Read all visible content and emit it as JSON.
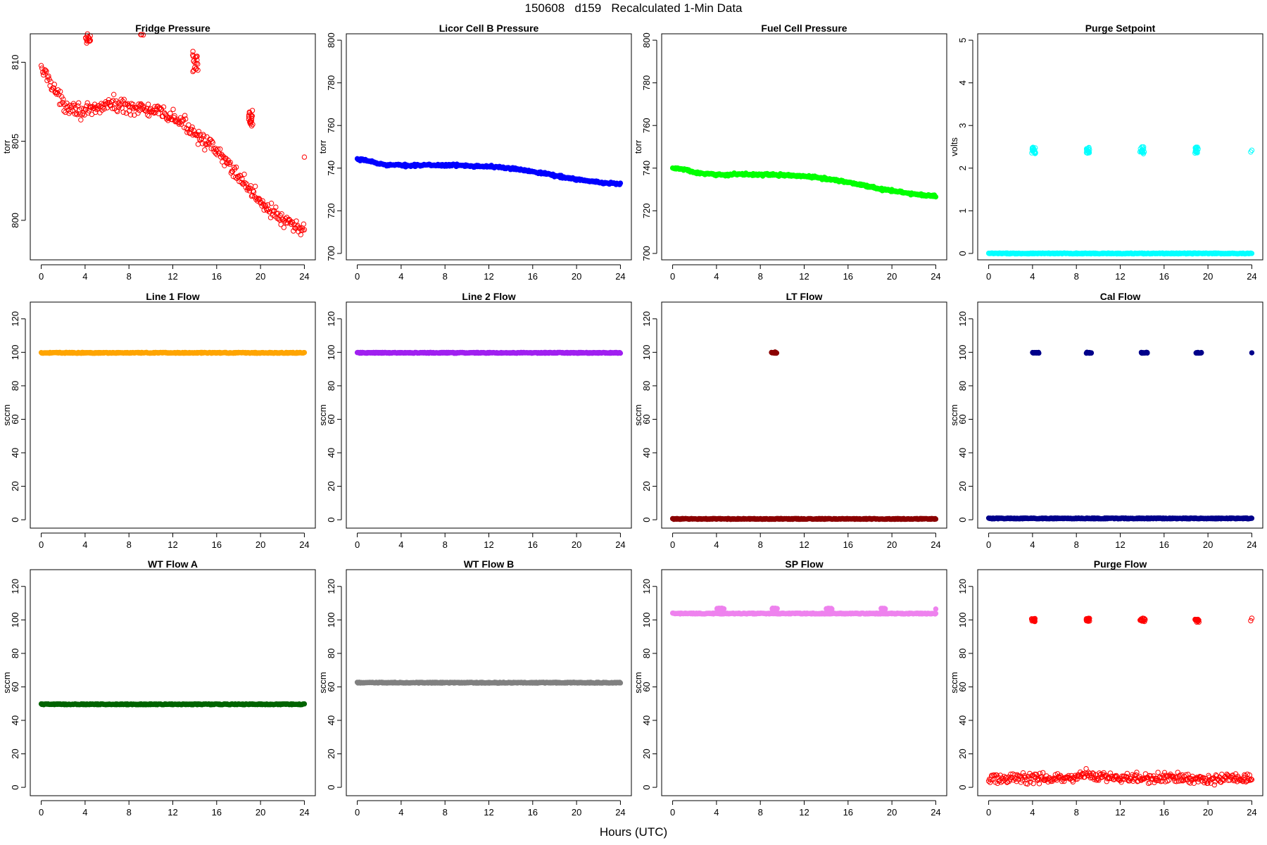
{
  "figure": {
    "title": "150608   d159   Recalculated 1-Min Data",
    "xlabel": "Hours (UTC)"
  },
  "chart_data": [
    {
      "type": "scatter",
      "title": "Fridge Pressure",
      "ylabel": "torr",
      "color": "#ff0000",
      "marker": "open",
      "xlim": [
        -1,
        25
      ],
      "ylim": [
        797.5,
        811.8
      ],
      "xticks": [
        0,
        4,
        8,
        12,
        16,
        20,
        24
      ],
      "yticks": [
        800,
        805,
        810
      ],
      "series": [
        {
          "kind": "trend",
          "x": [
            0,
            0.5,
            1,
            1.5,
            2,
            3,
            4,
            5,
            6,
            7,
            8,
            9,
            10,
            11,
            12,
            13,
            14,
            15,
            16,
            17,
            18,
            19,
            20,
            21,
            22,
            23,
            24
          ],
          "y": [
            809.5,
            809.2,
            808.6,
            807.9,
            807.3,
            807.2,
            806.8,
            807.0,
            807.4,
            807.3,
            807.2,
            807.1,
            806.9,
            806.8,
            806.5,
            806.1,
            805.6,
            805.0,
            804.3,
            803.6,
            802.8,
            802.0,
            801.2,
            800.6,
            800.0,
            799.6,
            799.4
          ],
          "spread": 0.45
        },
        {
          "kind": "cluster",
          "x": [
            4.0,
            4.5
          ],
          "y": [
            811.2,
            812.0
          ]
        },
        {
          "kind": "cluster",
          "x": [
            9.0,
            9.4
          ],
          "y": [
            811.7,
            812.6
          ]
        },
        {
          "kind": "cluster",
          "x": [
            13.8,
            14.3
          ],
          "y": [
            809.4,
            810.8
          ]
        },
        {
          "kind": "cluster",
          "x": [
            18.9,
            19.3
          ],
          "y": [
            805.8,
            807.0
          ]
        },
        {
          "kind": "point",
          "x": [
            24
          ],
          "y": [
            804.0
          ]
        }
      ]
    },
    {
      "type": "scatter",
      "title": "Licor Cell B Pressure",
      "ylabel": "torr",
      "color": "#0000ff",
      "marker": "filled",
      "xlim": [
        -1,
        25
      ],
      "ylim": [
        697,
        803
      ],
      "xticks": [
        0,
        4,
        8,
        12,
        16,
        20,
        24
      ],
      "yticks": [
        700,
        720,
        740,
        760,
        780,
        800
      ],
      "series": [
        {
          "kind": "trend",
          "x": [
            0,
            1,
            2,
            3,
            4,
            5,
            6,
            7,
            8,
            9,
            10,
            11,
            12,
            13,
            14,
            15,
            16,
            17,
            18,
            19,
            20,
            21,
            22,
            23,
            24
          ],
          "y": [
            744,
            743.5,
            742,
            741.5,
            741.3,
            741.3,
            741.4,
            741.4,
            741.4,
            741.3,
            741.2,
            741.0,
            740.8,
            740.4,
            739.8,
            739.2,
            738.5,
            737.6,
            736.6,
            735.6,
            734.8,
            734.0,
            733.3,
            732.9,
            732.7
          ],
          "spread": 0.5
        }
      ]
    },
    {
      "type": "scatter",
      "title": "Fuel Cell Pressure",
      "ylabel": "torr",
      "color": "#00ff00",
      "marker": "filled",
      "xlim": [
        -1,
        25
      ],
      "ylim": [
        697,
        803
      ],
      "xticks": [
        0,
        4,
        8,
        12,
        16,
        20,
        24
      ],
      "yticks": [
        700,
        720,
        740,
        760,
        780,
        800
      ],
      "series": [
        {
          "kind": "trend",
          "x": [
            0,
            1,
            2,
            3,
            4,
            5,
            6,
            7,
            8,
            9,
            10,
            11,
            12,
            13,
            14,
            15,
            16,
            17,
            18,
            19,
            20,
            21,
            22,
            23,
            24
          ],
          "y": [
            740,
            739.5,
            738,
            737.2,
            737.0,
            736.9,
            737.2,
            737.1,
            737.0,
            736.9,
            736.7,
            736.5,
            736.2,
            735.7,
            735.0,
            734.3,
            733.4,
            732.4,
            731.3,
            730.2,
            729.4,
            728.6,
            727.8,
            727.3,
            727.0
          ],
          "spread": 0.5
        }
      ]
    },
    {
      "type": "scatter",
      "title": "Purge Setpoint",
      "ylabel": "volts",
      "color": "#00ffff",
      "marker": "open",
      "xlim": [
        -1,
        25
      ],
      "ylim": [
        -0.15,
        5.15
      ],
      "xticks": [
        0,
        4,
        8,
        12,
        16,
        20,
        24
      ],
      "yticks": [
        0,
        1,
        2,
        3,
        4,
        5
      ],
      "series": [
        {
          "kind": "baseline",
          "x": [
            0,
            24
          ],
          "y": [
            0,
            0
          ]
        },
        {
          "kind": "cluster",
          "x": [
            3.9,
            4.3
          ],
          "y": [
            2.33,
            2.5
          ]
        },
        {
          "kind": "cluster",
          "x": [
            8.9,
            9.2
          ],
          "y": [
            2.35,
            2.5
          ]
        },
        {
          "kind": "cluster",
          "x": [
            13.8,
            14.2
          ],
          "y": [
            2.33,
            2.5
          ]
        },
        {
          "kind": "cluster",
          "x": [
            18.8,
            19.1
          ],
          "y": [
            2.35,
            2.5
          ]
        },
        {
          "kind": "point",
          "x": [
            23.9,
            24
          ],
          "y": [
            2.38,
            2.42
          ]
        }
      ]
    },
    {
      "type": "scatter",
      "title": "Line 1 Flow",
      "ylabel": "sccm",
      "color": "#ffa500",
      "marker": "filled",
      "xlim": [
        -1,
        25
      ],
      "ylim": [
        -5,
        130
      ],
      "xticks": [
        0,
        4,
        8,
        12,
        16,
        20,
        24
      ],
      "yticks": [
        0,
        20,
        40,
        60,
        80,
        100,
        120
      ],
      "series": [
        {
          "kind": "baseline",
          "x": [
            0,
            24
          ],
          "y": [
            99.7,
            99.7
          ]
        }
      ]
    },
    {
      "type": "scatter",
      "title": "Line 2 Flow",
      "ylabel": "sccm",
      "color": "#a020f0",
      "marker": "filled",
      "xlim": [
        -1,
        25
      ],
      "ylim": [
        -5,
        130
      ],
      "xticks": [
        0,
        4,
        8,
        12,
        16,
        20,
        24
      ],
      "yticks": [
        0,
        20,
        40,
        60,
        80,
        100,
        120
      ],
      "series": [
        {
          "kind": "baseline",
          "x": [
            0,
            24
          ],
          "y": [
            99.7,
            99.7
          ]
        }
      ]
    },
    {
      "type": "scatter",
      "title": "LT Flow",
      "ylabel": "sccm",
      "color": "#8b0000",
      "marker": "filled",
      "xlim": [
        -1,
        25
      ],
      "ylim": [
        -5,
        130
      ],
      "xticks": [
        0,
        4,
        8,
        12,
        16,
        20,
        24
      ],
      "yticks": [
        0,
        20,
        40,
        60,
        80,
        100,
        120
      ],
      "series": [
        {
          "kind": "baseline",
          "x": [
            0,
            24
          ],
          "y": [
            0.5,
            0.5
          ]
        },
        {
          "kind": "cluster",
          "x": [
            9.0,
            9.5
          ],
          "y": [
            99.5,
            100.2
          ]
        }
      ]
    },
    {
      "type": "scatter",
      "title": "Cal Flow",
      "ylabel": "sccm",
      "color": "#00008b",
      "marker": "filled",
      "xlim": [
        -1,
        25
      ],
      "ylim": [
        -5,
        130
      ],
      "xticks": [
        0,
        4,
        8,
        12,
        16,
        20,
        24
      ],
      "yticks": [
        0,
        20,
        40,
        60,
        80,
        100,
        120
      ],
      "series": [
        {
          "kind": "baseline",
          "x": [
            0,
            24
          ],
          "y": [
            0.8,
            0.8
          ]
        },
        {
          "kind": "cluster",
          "x": [
            4.0,
            4.6
          ],
          "y": [
            99.5,
            100.0
          ]
        },
        {
          "kind": "cluster",
          "x": [
            8.9,
            9.4
          ],
          "y": [
            99.5,
            100.0
          ]
        },
        {
          "kind": "cluster",
          "x": [
            13.9,
            14.5
          ],
          "y": [
            99.5,
            100.0
          ]
        },
        {
          "kind": "cluster",
          "x": [
            18.9,
            19.4
          ],
          "y": [
            99.5,
            100.0
          ]
        },
        {
          "kind": "point",
          "x": [
            24
          ],
          "y": [
            99.7
          ]
        }
      ]
    },
    {
      "type": "scatter",
      "title": "WT Flow A",
      "ylabel": "sccm",
      "color": "#006400",
      "marker": "filled",
      "xlim": [
        -1,
        25
      ],
      "ylim": [
        -5,
        130
      ],
      "xticks": [
        0,
        4,
        8,
        12,
        16,
        20,
        24
      ],
      "yticks": [
        0,
        20,
        40,
        60,
        80,
        100,
        120
      ],
      "series": [
        {
          "kind": "baseline",
          "x": [
            0,
            24
          ],
          "y": [
            49.6,
            49.6
          ]
        }
      ]
    },
    {
      "type": "scatter",
      "title": "WT Flow B",
      "ylabel": "sccm",
      "color": "#808080",
      "marker": "filled",
      "xlim": [
        -1,
        25
      ],
      "ylim": [
        -5,
        130
      ],
      "xticks": [
        0,
        4,
        8,
        12,
        16,
        20,
        24
      ],
      "yticks": [
        0,
        20,
        40,
        60,
        80,
        100,
        120
      ],
      "series": [
        {
          "kind": "baseline",
          "x": [
            0,
            24
          ],
          "y": [
            62.5,
            62.5
          ]
        }
      ]
    },
    {
      "type": "scatter",
      "title": "SP Flow",
      "ylabel": "sccm",
      "color": "#ee82ee",
      "marker": "filled",
      "xlim": [
        -1,
        25
      ],
      "ylim": [
        -5,
        130
      ],
      "xticks": [
        0,
        4,
        8,
        12,
        16,
        20,
        24
      ],
      "yticks": [
        0,
        20,
        40,
        60,
        80,
        100,
        120
      ],
      "series": [
        {
          "kind": "baseline",
          "x": [
            0,
            24
          ],
          "y": [
            103.8,
            103.8
          ]
        },
        {
          "kind": "cluster",
          "x": [
            4.0,
            4.7
          ],
          "y": [
            106.2,
            107.0
          ]
        },
        {
          "kind": "cluster",
          "x": [
            9.0,
            9.6
          ],
          "y": [
            106.2,
            107.0
          ]
        },
        {
          "kind": "cluster",
          "x": [
            14.0,
            14.6
          ],
          "y": [
            106.2,
            107.0
          ]
        },
        {
          "kind": "cluster",
          "x": [
            19.0,
            19.4
          ],
          "y": [
            106.2,
            107.0
          ]
        },
        {
          "kind": "point",
          "x": [
            24
          ],
          "y": [
            106.5
          ]
        }
      ]
    },
    {
      "type": "scatter",
      "title": "Purge Flow",
      "ylabel": "sccm",
      "color": "#ff0000",
      "marker": "open",
      "xlim": [
        -1,
        25
      ],
      "ylim": [
        -5,
        130
      ],
      "xticks": [
        0,
        4,
        8,
        12,
        16,
        20,
        24
      ],
      "yticks": [
        0,
        20,
        40,
        60,
        80,
        100,
        120
      ],
      "series": [
        {
          "kind": "trend",
          "x": [
            0,
            4,
            8,
            9,
            9.5,
            12,
            16,
            20,
            24
          ],
          "y": [
            5.5,
            5.5,
            5.5,
            8.5,
            6.5,
            5.5,
            5.5,
            5.2,
            5.2
          ],
          "spread": 3.0
        },
        {
          "kind": "cluster",
          "x": [
            3.9,
            4.3
          ],
          "y": [
            99.0,
            101.0
          ]
        },
        {
          "kind": "cluster",
          "x": [
            8.9,
            9.2
          ],
          "y": [
            99.0,
            101.0
          ]
        },
        {
          "kind": "cluster",
          "x": [
            13.8,
            14.3
          ],
          "y": [
            99.0,
            101.0
          ]
        },
        {
          "kind": "cluster",
          "x": [
            18.8,
            19.2
          ],
          "y": [
            98.5,
            100.5
          ]
        },
        {
          "kind": "point",
          "x": [
            23.9,
            24
          ],
          "y": [
            99.5,
            101.0
          ]
        }
      ]
    }
  ]
}
